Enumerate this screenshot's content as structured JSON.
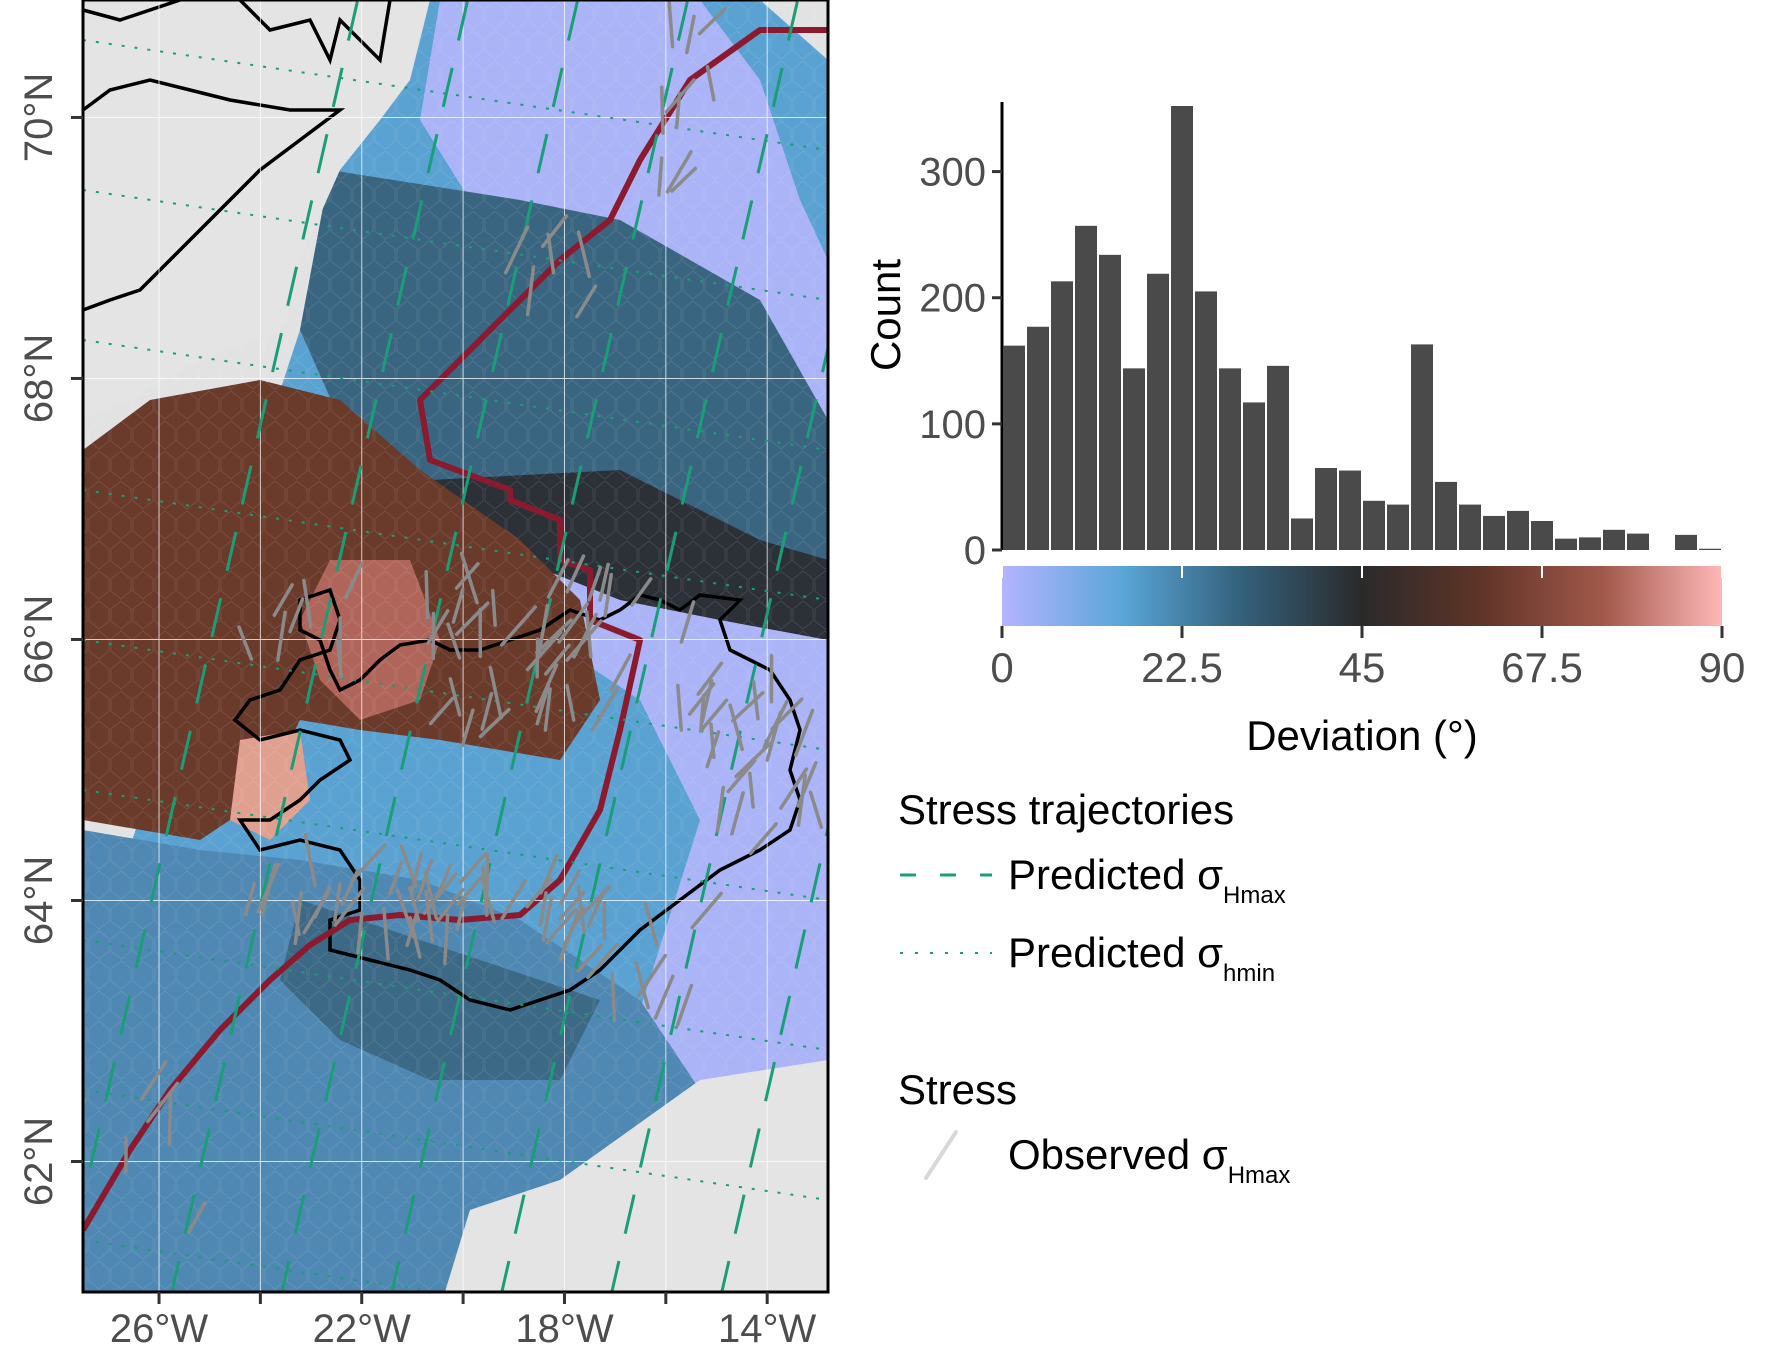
{
  "map": {
    "lat_labels": [
      "70°N",
      "68°N",
      "66°N",
      "64°N",
      "62°N"
    ],
    "lon_labels": [
      "26°W",
      "22°W",
      "18°W",
      "14°W"
    ],
    "lat_values": [
      70,
      68,
      66,
      64,
      62
    ],
    "lon_values": [
      -26,
      -22,
      -18,
      -14
    ],
    "extent": {
      "lon": [
        -27.5,
        -12.8
      ],
      "lat": [
        61.0,
        70.9
      ]
    },
    "colors": {
      "land": "#e2e2e2",
      "coastline": "#000000",
      "plate_boundary": "#8b1a2e",
      "trajectory": "#1a9e77",
      "observed": "#8a8a8a",
      "frame": "#000000"
    }
  },
  "histogram": {
    "ylabel": "Count",
    "y_ticks": [
      0,
      100,
      200,
      300
    ],
    "bin_width": 3,
    "bar_color": "#4a4a4a",
    "chart_data": {
      "type": "bar",
      "x": [
        1.5,
        4.5,
        7.5,
        10.5,
        13.5,
        16.5,
        19.5,
        22.5,
        25.5,
        28.5,
        31.5,
        34.5,
        37.5,
        40.5,
        43.5,
        46.5,
        49.5,
        52.5,
        55.5,
        58.5,
        61.5,
        64.5,
        67.5,
        70.5,
        73.5,
        76.5,
        79.5,
        82.5,
        85.5,
        88.5
      ],
      "values": [
        162,
        177,
        213,
        257,
        234,
        144,
        219,
        352,
        205,
        144,
        117,
        146,
        25,
        65,
        63,
        39,
        36,
        163,
        54,
        36,
        27,
        31,
        23,
        9,
        10,
        16,
        13,
        0,
        12,
        1
      ],
      "xlim": [
        0,
        90
      ],
      "ylim": [
        0,
        352
      ]
    }
  },
  "colorbar": {
    "title": "Deviation (°)",
    "tick_labels": [
      "0",
      "22.5",
      "45",
      "67.5",
      "90"
    ],
    "tick_values": [
      0,
      22.5,
      45,
      67.5,
      90
    ],
    "stops": [
      "#b4b4ff",
      "#5aa6d8",
      "#34607a",
      "#2a2a2a",
      "#603428",
      "#a0584a",
      "#ffb8b8"
    ]
  },
  "legend": {
    "trajectories_title": "Stress trajectories",
    "hmax_label_main": "Predicted σ",
    "hmax_label_sub": "Hmax",
    "hmin_label_main": "Predicted σ",
    "hmin_label_sub": "hmin",
    "stress_title": "Stress",
    "observed_label_main": "Observed σ",
    "observed_label_sub": "Hmax"
  }
}
